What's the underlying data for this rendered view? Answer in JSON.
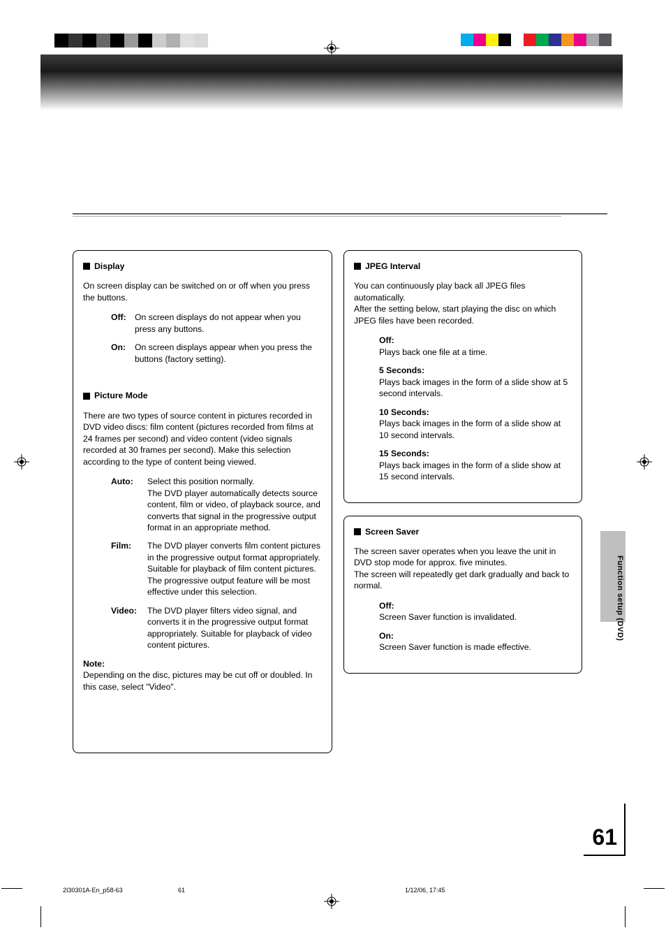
{
  "page": {
    "number": "61",
    "side_tab": "Function setup (DVD)",
    "footer_file": "2I30301A-En_p58-63",
    "footer_page": "61",
    "footer_date": "1/12/06, 17:45"
  },
  "print_marks": {
    "left_squares": [
      "#000000",
      "#333333",
      "#000000",
      "#666666",
      "#000000",
      "#999999",
      "#000000",
      "#cccccc",
      "#b0b0b0",
      "#e0e0e0",
      "#d8d8d8"
    ],
    "right_squares": [
      "#00aeef",
      "#ec008c",
      "#fff200",
      "#000000",
      "#ffffff",
      "#ed1c24",
      "#00a651",
      "#2e3192",
      "#f7941d",
      "#ec008c",
      "#a7a9ac",
      "#58595b"
    ]
  },
  "left_column": {
    "display": {
      "heading": "Display",
      "intro": "On screen display can be switched on or off when you press the buttons.",
      "items": [
        {
          "label": "Off:",
          "text": "On screen displays do not appear when you press any buttons."
        },
        {
          "label": "On:",
          "text": "On screen displays appear when you press the buttons (factory setting)."
        }
      ]
    },
    "picture_mode": {
      "heading": "Picture Mode",
      "intro": "There are two types of source content in pictures recorded in DVD video discs: film content (pictures recorded from films at 24 frames per second) and video content (video signals recorded at 30 frames per second). Make this selection according to the type of content being viewed.",
      "items": [
        {
          "label": "Auto:",
          "text": "Select this position normally.\nThe DVD player automatically detects source content, film or video, of playback source, and converts that signal in the progressive output format in an appropriate method."
        },
        {
          "label": "Film:",
          "text": "The DVD player converts film content pictures in the progressive output format appropriately. Suitable for playback of film content pictures. The progressive output feature will be most effective under this selection."
        },
        {
          "label": "Video:",
          "text": "The DVD player filters video signal, and converts it in the progressive output format   appropriately. Suitable for playback of video content pictures."
        }
      ]
    },
    "note": {
      "label": "Note:",
      "text": "Depending on the disc, pictures may be cut off or doubled. In this case, select \"Video\"."
    }
  },
  "right_column": {
    "jpeg_interval": {
      "heading": "JPEG Interval",
      "intro": "You can continuously play back all JPEG files automatically.\nAfter the setting below, start playing the disc on which JPEG files have been recorded.",
      "items": [
        {
          "label": "Off:",
          "text": "Plays back one file at a time."
        },
        {
          "label": "5 Seconds:",
          "text": "Plays back images in the form of a slide show at 5 second intervals."
        },
        {
          "label": "10 Seconds:",
          "text": "Plays back images in the form of a slide show at 10 second intervals."
        },
        {
          "label": "15 Seconds:",
          "text": "Plays back images in the form of a slide show at 15 second intervals."
        }
      ]
    },
    "screen_saver": {
      "heading": "Screen Saver",
      "intro": "The screen saver operates when you leave the unit in DVD stop mode for approx. five minutes.\nThe screen will repeatedly get dark gradually and back to normal.",
      "items": [
        {
          "label": "Off:",
          "text": "Screen Saver function is invalidated."
        },
        {
          "label": "On:",
          "text": "Screen Saver function is made effective."
        }
      ]
    }
  }
}
